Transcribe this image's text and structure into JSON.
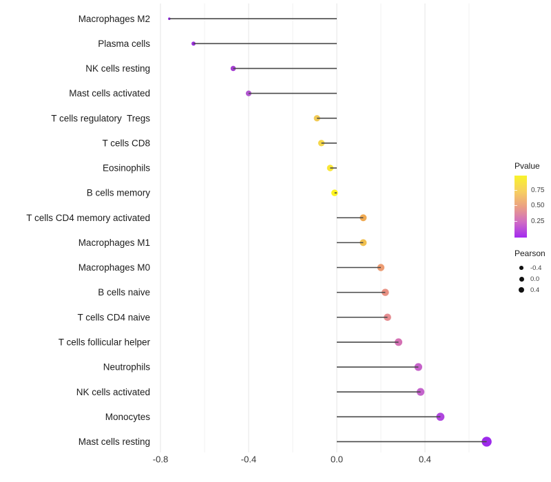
{
  "chart_data": {
    "type": "scatter",
    "variant": "lollipop",
    "title": "",
    "xlabel": "",
    "ylabel": "",
    "x_axis": {
      "range": [
        -0.84,
        0.75
      ],
      "ticks": [
        -0.8,
        -0.4,
        0.0,
        0.4
      ],
      "tick_labels": [
        "-0.8",
        "-0.4",
        "0.0",
        "0.4"
      ],
      "minor_ticks": [
        -0.6,
        -0.2,
        0.2,
        0.6
      ]
    },
    "grid": "vertical-only",
    "stem_color": "#484848",
    "gridline_color_major": "#e4e4e4",
    "gridline_color_minor": "#f0f0f0",
    "points": [
      {
        "label": "Macrophages M2",
        "pearson": -0.76,
        "color": "#9428e6",
        "r": 1.8
      },
      {
        "label": "Plasma cells",
        "pearson": -0.65,
        "color": "#9b30dc",
        "r": 3.0
      },
      {
        "label": "NK cells resting",
        "pearson": -0.47,
        "color": "#a43ed2",
        "r": 3.8
      },
      {
        "label": "Mast cells activated",
        "pearson": -0.4,
        "color": "#b156d0",
        "r": 4.1
      },
      {
        "label": "T cells regulatory  Tregs",
        "pearson": -0.09,
        "color": "#f1ca55",
        "r": 4.6
      },
      {
        "label": "T cells CD8",
        "pearson": -0.07,
        "color": "#f5d74b",
        "r": 4.7
      },
      {
        "label": "Eosinophils",
        "pearson": -0.03,
        "color": "#f9e637",
        "r": 4.7
      },
      {
        "label": "B cells memory",
        "pearson": -0.01,
        "color": "#fdf321",
        "r": 4.8
      },
      {
        "label": "T cells CD4 memory activated",
        "pearson": 0.12,
        "color": "#f0aa52",
        "r": 5.0
      },
      {
        "label": "Macrophages M1",
        "pearson": 0.12,
        "color": "#f1c04f",
        "r": 5.0
      },
      {
        "label": "Macrophages M0",
        "pearson": 0.2,
        "color": "#ec9c73",
        "r": 5.2
      },
      {
        "label": "B cells naive",
        "pearson": 0.22,
        "color": "#e89183",
        "r": 5.3
      },
      {
        "label": "T cells CD4 naive",
        "pearson": 0.23,
        "color": "#e58d91",
        "r": 5.3
      },
      {
        "label": "T cells follicular helper",
        "pearson": 0.28,
        "color": "#d471b4",
        "r": 5.5
      },
      {
        "label": "Neutrophils",
        "pearson": 0.37,
        "color": "#c562c9",
        "r": 5.6
      },
      {
        "label": "NK cells activated",
        "pearson": 0.38,
        "color": "#c464cc",
        "r": 5.6
      },
      {
        "label": "Monocytes",
        "pearson": 0.47,
        "color": "#b046df",
        "r": 5.9
      },
      {
        "label": "Mast cells resting",
        "pearson": 0.68,
        "color": "#9d2aeb",
        "r": 7.2
      }
    ],
    "legend_position": "right"
  },
  "legend": {
    "pvalue": {
      "title": "Pvalue",
      "gradient_top_to_bottom": [
        "#f8f32b",
        "#f7d05f",
        "#eba083",
        "#d06cc4",
        "#a32af0"
      ],
      "ticks": [
        {
          "label": "0.75"
        },
        {
          "label": "0.50"
        },
        {
          "label": "0.25"
        }
      ]
    },
    "pearson": {
      "title": "Pearson",
      "dot_color": "#111111",
      "items": [
        {
          "label": "-0.4"
        },
        {
          "label": "0.0"
        },
        {
          "label": "0.4"
        }
      ]
    }
  }
}
